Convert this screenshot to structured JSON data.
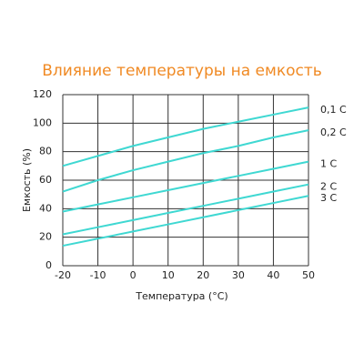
{
  "chart_data": {
    "type": "line",
    "title": "Влияние температуры на емкость",
    "x_label": "Температура (°С)",
    "y_label": "Емкость (%)",
    "x": [
      -20,
      -10,
      0,
      10,
      20,
      30,
      40,
      50
    ],
    "series": [
      {
        "name": "0,1 C",
        "color": "#3fd8d2",
        "values": [
          70,
          77,
          84,
          90,
          96,
          101,
          106,
          111
        ]
      },
      {
        "name": "0,2 C",
        "color": "#3fd8d2",
        "values": [
          52,
          60,
          67,
          73,
          79,
          84,
          90,
          95
        ]
      },
      {
        "name": "1 C",
        "color": "#3fd8d2",
        "values": [
          38,
          43,
          48,
          53,
          58,
          63,
          68,
          73
        ]
      },
      {
        "name": "2 C",
        "color": "#3fd8d2",
        "values": [
          22,
          27,
          32,
          37,
          42,
          47,
          52,
          57
        ]
      },
      {
        "name": "3 C",
        "color": "#3fd8d2",
        "values": [
          14,
          19,
          24,
          29,
          34,
          39,
          44,
          49
        ]
      }
    ],
    "xlim": [
      -20,
      50
    ],
    "xticks": [
      -20,
      -10,
      0,
      10,
      20,
      30,
      40,
      50
    ],
    "ylim": [
      0,
      120
    ],
    "yticks": [
      0,
      20,
      40,
      60,
      80,
      100,
      120
    ],
    "grid": true
  }
}
